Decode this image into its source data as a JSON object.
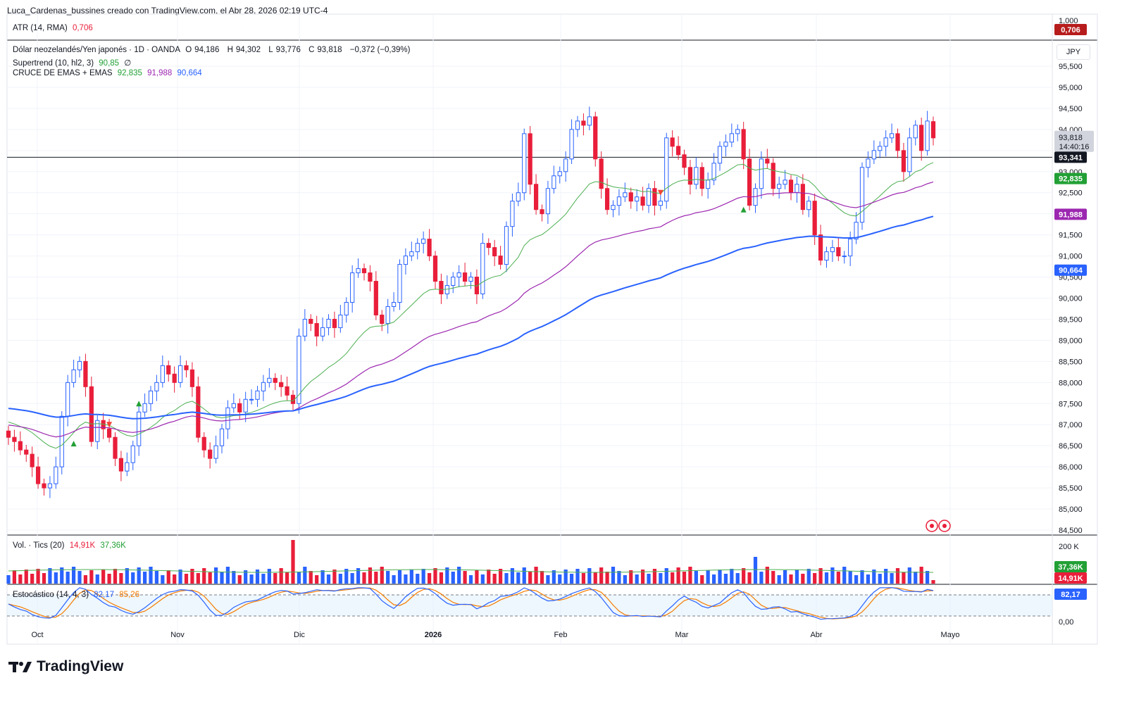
{
  "header": {
    "text": "Luca_Cardenas_bussines creado con TradingView.com, el Abr 28, 2026 02:19 UTC-4"
  },
  "atr": {
    "label": "ATR (14, RMA)",
    "value": "0,706",
    "axis_top": "1,000",
    "tag": "0,706"
  },
  "symbol": {
    "name": "Dólar neozelandés/Yen japonés · 1D · OANDA",
    "o_label": "O",
    "o": "94,186",
    "h_label": "H",
    "h": "94,302",
    "l_label": "L",
    "l": "93,776",
    "c_label": "C",
    "c": "93,818",
    "change": "−0,372 (−0,39%)",
    "currency": "JPY"
  },
  "supertrend": {
    "label": "Supertrend (10, hl2, 3)",
    "value": "90,85",
    "extra": "∅"
  },
  "emas": {
    "label": "CRUCE DE EMAS + EMAS",
    "v1": "92,835",
    "v2": "91,988",
    "v3": "90,664"
  },
  "volume": {
    "label": "Vol. · Tics (20)",
    "v1": "14,91K",
    "v2": "37,36K",
    "axis_top": "200 K",
    "tag1": "37,36K",
    "tag2": "14,91K"
  },
  "stoch": {
    "label": "Estocástico (14, 4, 3)",
    "k": "82,17",
    "d": "85,26",
    "tag": "82,17",
    "axis_zero": "0,00"
  },
  "price_tags": {
    "last": "93,818",
    "countdown": "14:40:16",
    "line": "93,341",
    "ema1": "92,835",
    "ema2": "91,988",
    "ema3": "90,664"
  },
  "brand": "TradingView",
  "colors": {
    "up": "#2962ff",
    "down": "#e91e3a",
    "ema_fast": "#4caf50",
    "ema_mid": "#9c27b0",
    "ema_slow": "#2962ff"
  },
  "chart_data": {
    "type": "candlestick",
    "title": "Dólar neozelandés/Yen japonés · 1D · OANDA",
    "y_ticks": [
      "84,500",
      "85,000",
      "85,500",
      "86,000",
      "86,500",
      "87,000",
      "87,500",
      "88,000",
      "88,500",
      "89,000",
      "89,500",
      "90,000",
      "90,500",
      "91,000",
      "91,500",
      "92,000",
      "92,500",
      "93,000",
      "93,500",
      "94,000",
      "94,500",
      "95,000",
      "95,500"
    ],
    "x_ticks": [
      "Oct",
      "Nov",
      "Dic",
      "2026",
      "Feb",
      "Mar",
      "Abr",
      "Mayo"
    ],
    "ylim": [
      84.5,
      95.5
    ],
    "horizontal_line": 93.341,
    "closes": [
      86.7,
      86.6,
      86.4,
      86.3,
      86.0,
      85.6,
      85.5,
      85.6,
      86.0,
      87.2,
      88.0,
      88.3,
      88.5,
      87.9,
      86.6,
      87.1,
      86.9,
      86.7,
      86.2,
      85.9,
      86.1,
      86.5,
      87.3,
      87.5,
      87.8,
      88.0,
      88.4,
      88.2,
      88.0,
      88.4,
      88.3,
      87.9,
      86.7,
      86.4,
      86.2,
      86.5,
      86.9,
      87.4,
      87.5,
      87.3,
      87.6,
      87.6,
      87.8,
      88.0,
      88.1,
      88.0,
      87.9,
      87.7,
      87.5,
      89.1,
      89.5,
      89.4,
      89.1,
      89.3,
      89.5,
      89.3,
      89.6,
      89.9,
      90.6,
      90.7,
      90.6,
      90.4,
      89.6,
      89.4,
      89.8,
      89.9,
      90.8,
      91.0,
      91.1,
      91.3,
      91.4,
      91.0,
      90.4,
      90.1,
      90.3,
      90.5,
      90.6,
      90.4,
      90.5,
      90.1,
      91.3,
      91.2,
      91.0,
      90.8,
      91.7,
      92.3,
      92.5,
      93.9,
      92.7,
      92.1,
      92.0,
      92.6,
      92.9,
      93.0,
      93.3,
      94.0,
      94.2,
      94.1,
      94.3,
      93.3,
      92.6,
      92.1,
      92.2,
      92.4,
      92.5,
      92.3,
      92.4,
      92.2,
      92.6,
      92.2,
      92.3,
      93.8,
      93.6,
      93.4,
      93.1,
      92.7,
      93.1,
      92.6,
      92.8,
      93.2,
      93.6,
      93.7,
      93.9,
      94.0,
      93.3,
      92.2,
      92.6,
      93.3,
      93.2,
      92.6,
      92.7,
      92.8,
      92.5,
      92.7,
      92.1,
      92.3,
      91.5,
      90.9,
      91.1,
      91.2,
      91.0,
      91.0,
      91.4,
      91.8,
      93.1,
      93.3,
      93.5,
      93.6,
      93.8,
      93.9,
      93.5,
      93.0,
      93.8,
      94.1,
      93.5,
      94.2,
      93.8
    ]
  }
}
